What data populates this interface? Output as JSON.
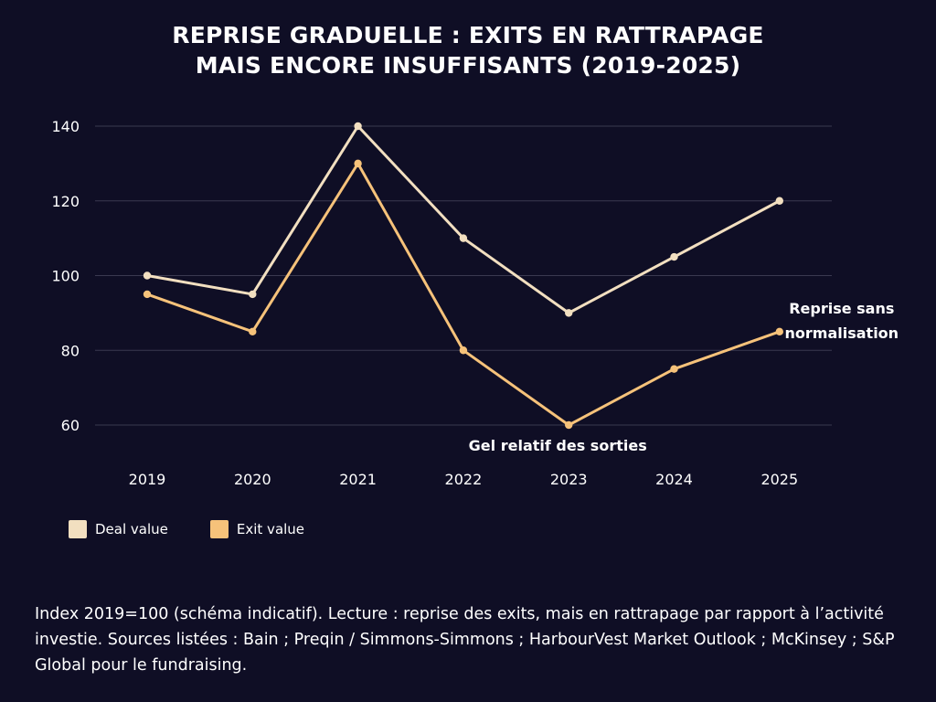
{
  "title": {
    "line1": "REPRISE GRADUELLE : EXITS EN RATTRAPAGE",
    "line2": "MAIS ENCORE INSUFFISANTS (2019-2025)"
  },
  "chart_data": {
    "type": "line",
    "x": [
      "2019",
      "2020",
      "2021",
      "2022",
      "2023",
      "2024",
      "2025"
    ],
    "series": [
      {
        "name": "Deal value",
        "values": [
          100,
          95,
          140,
          110,
          90,
          105,
          120
        ],
        "color": "#f2dfc0"
      },
      {
        "name": "Exit value",
        "values": [
          95,
          85,
          130,
          80,
          60,
          75,
          85
        ],
        "color": "#f6c27a"
      }
    ],
    "yticks": [
      60,
      80,
      100,
      120,
      140
    ],
    "ylim": [
      60,
      140
    ],
    "grid": true,
    "legend": "bottom-left",
    "annotations": [
      {
        "text": "Gel relatif des sorties",
        "x": "2023",
        "y": 60
      },
      {
        "lines": [
          "Reprise sans",
          "normalisation"
        ],
        "x": "2025",
        "y": 85
      }
    ],
    "colors": {
      "background": "#0f0e25",
      "gridline": "#3a3950",
      "text": "#ffffff"
    }
  },
  "footnote": "Index 2019=100 (schéma indicatif). Lecture : reprise des exits, mais en rattrapage par rapport à l’activité investie. Sources listées : Bain ; Preqin / Simmons-Simmons ; HarbourVest Market Outlook ; McKinsey ; S&P Global pour le fundraising."
}
